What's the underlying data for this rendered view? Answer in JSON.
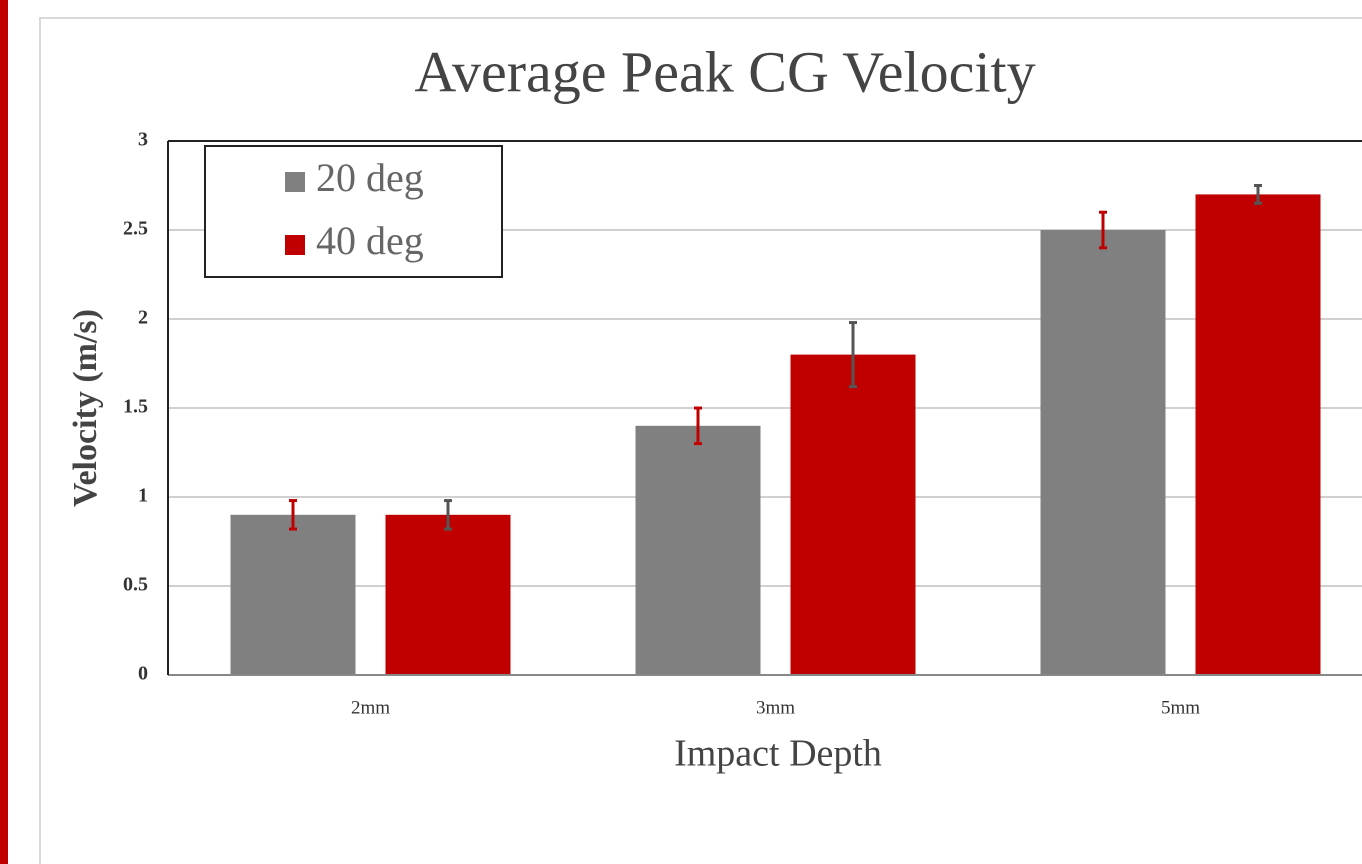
{
  "chart_data": {
    "type": "bar",
    "title": "Average Peak CG Velocity",
    "x_label": "Impact Depth",
    "y_label": "Velocity (m/s)",
    "categories": [
      "2mm",
      "3mm",
      "5mm"
    ],
    "series": [
      {
        "name": "20 deg",
        "color": "#808080",
        "error_color": "#c00000",
        "values": [
          0.9,
          1.4,
          2.5
        ],
        "errors": [
          0.08,
          0.1,
          0.1
        ]
      },
      {
        "name": "40 deg",
        "color": "#c00000",
        "error_color": "#555555",
        "values": [
          0.9,
          1.8,
          2.7
        ],
        "errors": [
          0.08,
          0.18,
          0.05
        ]
      }
    ],
    "ylim": [
      0,
      3
    ],
    "yticks": [
      0,
      0.5,
      1,
      1.5,
      2,
      2.5,
      3
    ],
    "grid": true,
    "legend": "top-left"
  }
}
